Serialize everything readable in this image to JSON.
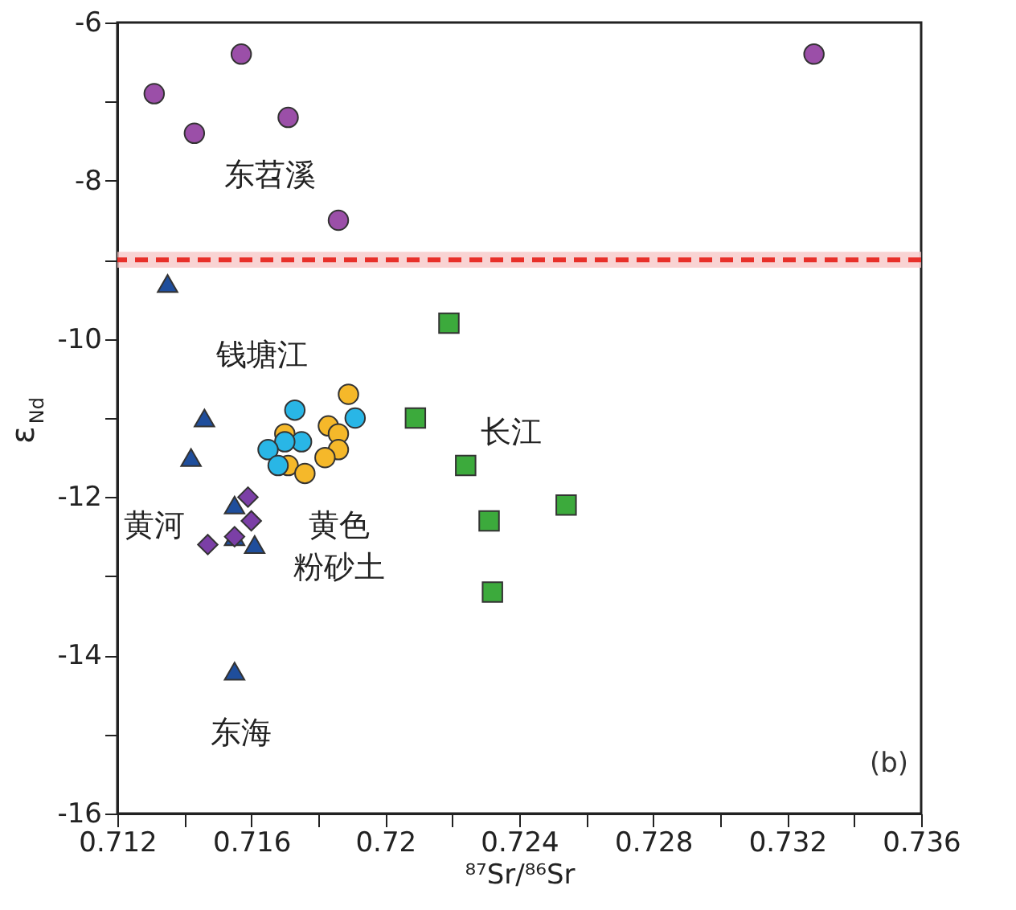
{
  "chart_data": {
    "type": "scatter",
    "xlabel": "⁸⁷Sr/⁸⁶Sr",
    "ylabel": "ε$_{Nd}$",
    "xlim": [
      0.712,
      0.736
    ],
    "ylim": [
      -16,
      -6
    ],
    "xticks": [
      0.712,
      {
        "value": 0.714,
        "label": null
      },
      0.716,
      {
        "value": 0.718,
        "label": null
      },
      0.72,
      {
        "value": 0.722,
        "label": null
      },
      0.724,
      {
        "value": 0.726,
        "label": null
      },
      0.728,
      {
        "value": 0.73,
        "label": null
      },
      0.732,
      {
        "value": 0.734,
        "label": null
      },
      0.736
    ],
    "yticks": [
      -16,
      {
        "value": -15,
        "label": null
      },
      -14,
      {
        "value": -13,
        "label": null
      },
      -12,
      {
        "value": -11,
        "label": null
      },
      -10,
      {
        "value": -9,
        "label": null
      },
      -8,
      {
        "value": -7,
        "label": null
      },
      -6
    ],
    "grid": false,
    "series": [
      {
        "marker": "circle",
        "color": "#9b4fa8",
        "x": [
          0.7131,
          0.7157,
          0.7143,
          0.7171,
          0.7186,
          0.7328
        ],
        "values": [
          -6.9,
          -6.4,
          -7.4,
          -7.2,
          -8.5,
          -6.4
        ]
      },
      {
        "marker": "triangle",
        "color": "#1f4e9c",
        "x": [
          0.7135,
          0.7146,
          0.7142,
          0.7155,
          0.7155,
          0.7161,
          0.7155
        ],
        "values": [
          -9.3,
          -11.0,
          -11.5,
          -12.1,
          -12.5,
          -12.6,
          -14.2
        ]
      },
      {
        "marker": "diamond",
        "color": "#7b3fa6",
        "x": [
          0.7159,
          0.716,
          0.7155,
          0.7147
        ],
        "values": [
          -12.0,
          -12.3,
          -12.5,
          -12.6
        ]
      },
      {
        "marker": "circle",
        "color": "#f5b82a",
        "x": [
          0.7189,
          0.7183,
          0.7186,
          0.7186,
          0.7182,
          0.717,
          0.7171,
          0.7176
        ],
        "values": [
          -10.7,
          -11.1,
          -11.2,
          -11.4,
          -11.5,
          -11.2,
          -11.6,
          -11.7
        ]
      },
      {
        "marker": "circle",
        "color": "#29b6e6",
        "x": [
          0.7173,
          0.7191,
          0.7175,
          0.717,
          0.7165,
          0.7168
        ],
        "values": [
          -10.9,
          -11.0,
          -11.3,
          -11.3,
          -11.4,
          -11.6
        ]
      },
      {
        "marker": "square",
        "color": "#3caa3c",
        "x": [
          0.7219,
          0.7209,
          0.7224,
          0.7231,
          0.7254,
          0.7232
        ],
        "values": [
          -9.8,
          -11.0,
          -11.6,
          -12.3,
          -12.1,
          -13.2
        ]
      }
    ],
    "ref_lines": [
      {
        "axis": "y",
        "value": -9,
        "color": "#e8302a",
        "line_style": "dashed"
      }
    ],
    "bands": [
      {
        "axis": "y",
        "from": -9.1,
        "to": -8.9,
        "color": "#f8c8c8"
      }
    ],
    "annotations": [
      "东苕溪",
      "钱塘江",
      "黄河",
      "黄色",
      "粉砂土",
      "长江",
      "东海",
      "(b)"
    ]
  }
}
